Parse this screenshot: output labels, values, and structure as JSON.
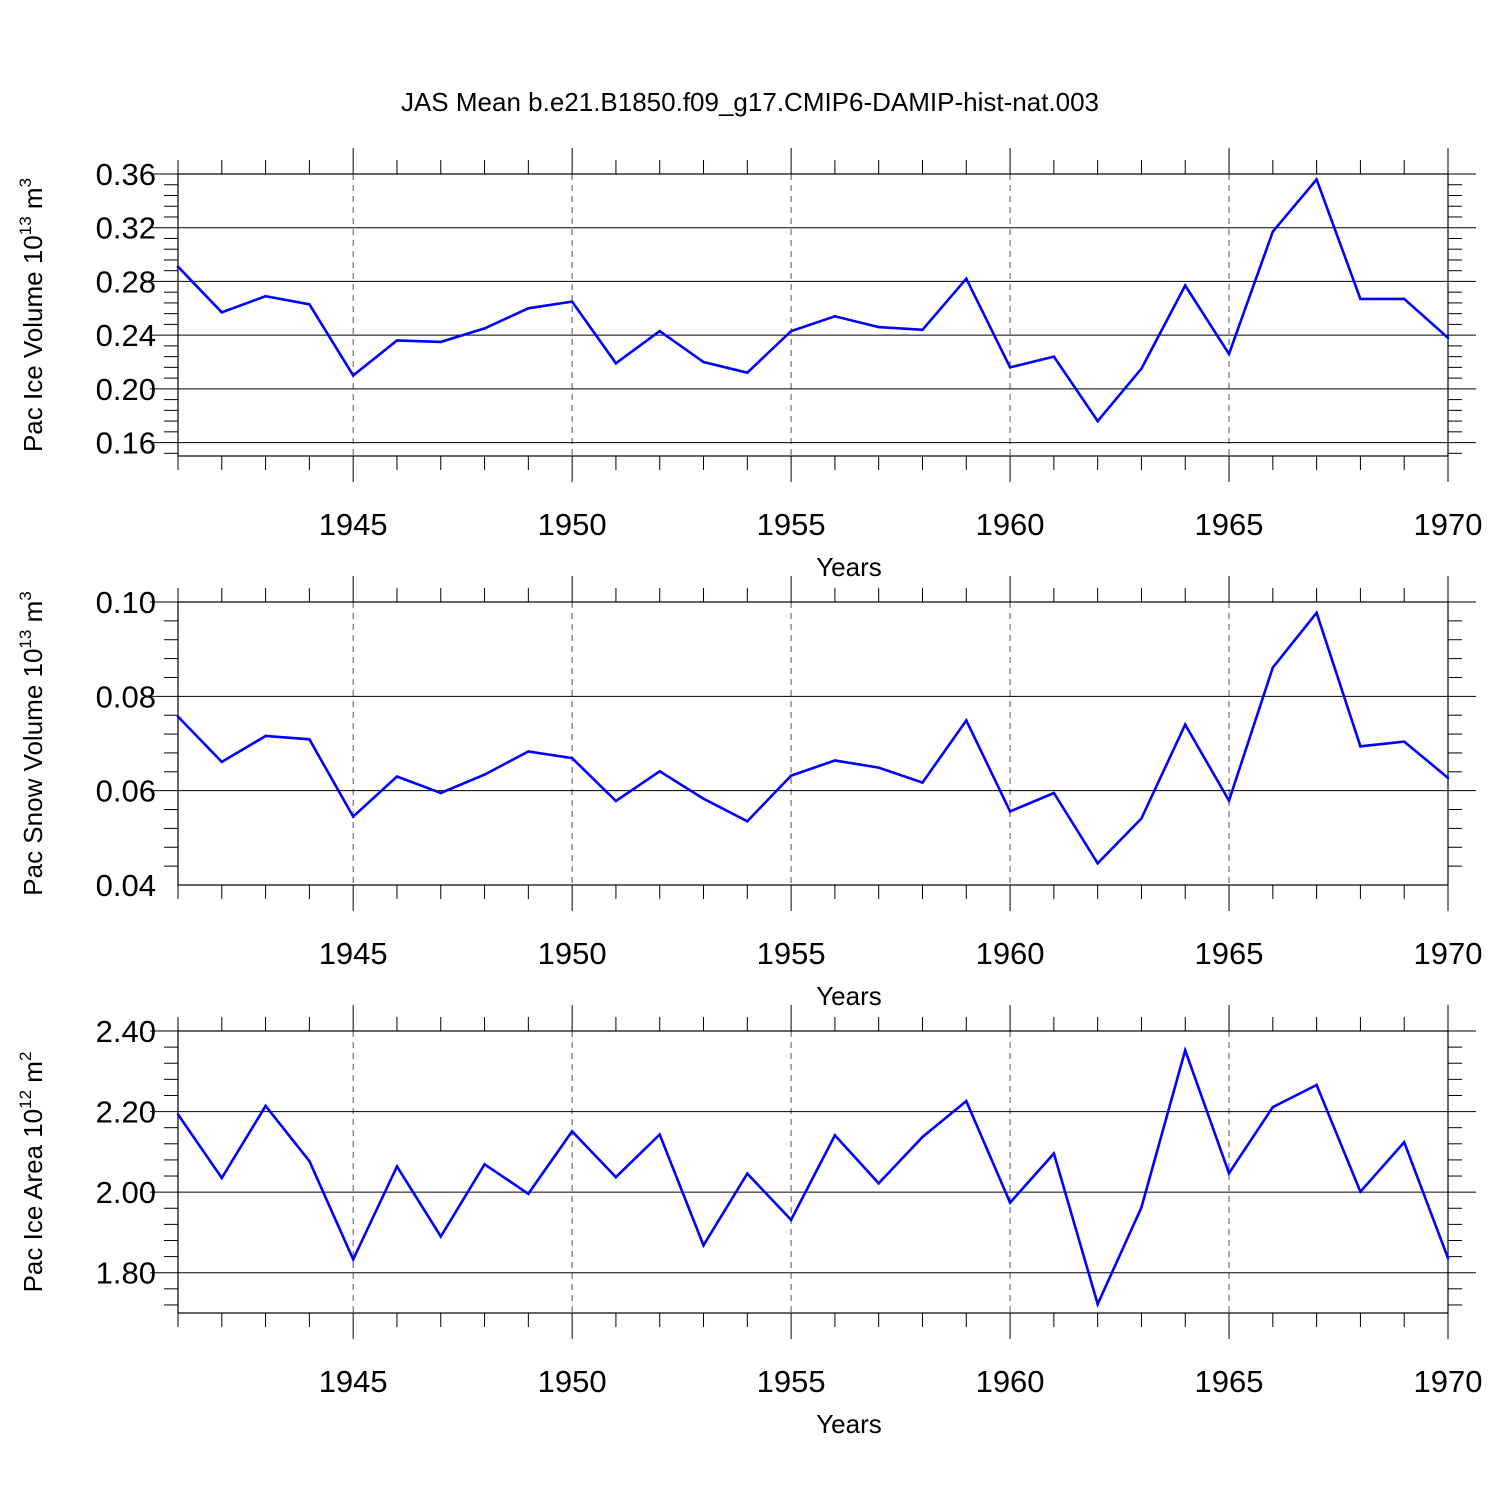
{
  "title": "JAS Mean b.e21.B1850.f09_g17.CMIP6-DAMIP-hist-nat.003",
  "colors": {
    "line": "#0000ff",
    "axis": "#000000",
    "grid": "#555555"
  },
  "chart_data": [
    {
      "type": "line",
      "ylabel_main": "Pac Ice Volume 10",
      "ylabel_exp": "13",
      "ylabel_unit": " m",
      "ylabel_unit_exp": "3",
      "xlabel": "Years",
      "xlim": [
        1941,
        1970
      ],
      "ylim": [
        0.15,
        0.36
      ],
      "yticks": [
        0.16,
        0.2,
        0.24,
        0.28,
        0.32,
        0.36
      ],
      "ytick_labels": [
        "0.16",
        "0.20",
        "0.24",
        "0.28",
        "0.32",
        "0.36"
      ],
      "xticks": [
        1945,
        1950,
        1955,
        1960,
        1965,
        1970
      ],
      "xtick_labels": [
        "1945",
        "1950",
        "1955",
        "1960",
        "1965",
        "1970"
      ],
      "x": [
        1941,
        1942,
        1943,
        1944,
        1945,
        1946,
        1947,
        1948,
        1949,
        1950,
        1951,
        1952,
        1953,
        1954,
        1955,
        1956,
        1957,
        1958,
        1959,
        1960,
        1961,
        1962,
        1963,
        1964,
        1965,
        1966,
        1967,
        1968,
        1969,
        1970
      ],
      "values": [
        0.291,
        0.257,
        0.269,
        0.263,
        0.21,
        0.236,
        0.235,
        0.245,
        0.26,
        0.265,
        0.219,
        0.243,
        0.22,
        0.212,
        0.243,
        0.254,
        0.246,
        0.244,
        0.282,
        0.216,
        0.224,
        0.176,
        0.215,
        0.277,
        0.226,
        0.317,
        0.356,
        0.267,
        0.267,
        0.238
      ]
    },
    {
      "type": "line",
      "ylabel_main": "Pac Snow Volume 10",
      "ylabel_exp": "13",
      "ylabel_unit": " m",
      "ylabel_unit_exp": "3",
      "xlabel": "Years",
      "xlim": [
        1941,
        1970
      ],
      "ylim": [
        0.04,
        0.1
      ],
      "yticks": [
        0.04,
        0.06,
        0.08,
        0.1
      ],
      "ytick_labels": [
        "0.04",
        "0.06",
        "0.08",
        "0.10"
      ],
      "xticks": [
        1945,
        1950,
        1955,
        1960,
        1965,
        1970
      ],
      "xtick_labels": [
        "1945",
        "1950",
        "1955",
        "1960",
        "1965",
        "1970"
      ],
      "x": [
        1941,
        1942,
        1943,
        1944,
        1945,
        1946,
        1947,
        1948,
        1949,
        1950,
        1951,
        1952,
        1953,
        1954,
        1955,
        1956,
        1957,
        1958,
        1959,
        1960,
        1961,
        1962,
        1963,
        1964,
        1965,
        1966,
        1967,
        1968,
        1969,
        1970
      ],
      "values": [
        0.0757,
        0.0661,
        0.0716,
        0.0709,
        0.0545,
        0.063,
        0.0595,
        0.0634,
        0.0683,
        0.0669,
        0.0578,
        0.0641,
        0.0583,
        0.0535,
        0.0632,
        0.0664,
        0.0649,
        0.0617,
        0.0749,
        0.0556,
        0.0595,
        0.0446,
        0.0541,
        0.074,
        0.0579,
        0.0861,
        0.0977,
        0.0694,
        0.0704,
        0.0627
      ]
    },
    {
      "type": "line",
      "ylabel_main": "Pac Ice Area 10",
      "ylabel_exp": "12",
      "ylabel_unit": " m",
      "ylabel_unit_exp": "2",
      "xlabel": "Years",
      "xlim": [
        1941,
        1970
      ],
      "ylim": [
        1.7,
        2.4
      ],
      "yticks": [
        1.8,
        2.0,
        2.2,
        2.4
      ],
      "ytick_labels": [
        "1.80",
        "2.00",
        "2.20",
        "2.40"
      ],
      "xticks": [
        1945,
        1950,
        1955,
        1960,
        1965,
        1970
      ],
      "xtick_labels": [
        "1945",
        "1950",
        "1955",
        "1960",
        "1965",
        "1970"
      ],
      "x": [
        1941,
        1942,
        1943,
        1944,
        1945,
        1946,
        1947,
        1948,
        1949,
        1950,
        1951,
        1952,
        1953,
        1954,
        1955,
        1956,
        1957,
        1958,
        1959,
        1960,
        1961,
        1962,
        1963,
        1964,
        1965,
        1966,
        1967,
        1968,
        1969,
        1970
      ],
      "values": [
        2.193,
        2.035,
        2.214,
        2.077,
        1.833,
        2.064,
        1.89,
        2.069,
        1.996,
        2.151,
        2.037,
        2.143,
        1.868,
        2.046,
        1.931,
        2.141,
        2.022,
        2.137,
        2.226,
        1.974,
        2.096,
        1.722,
        1.962,
        2.352,
        2.047,
        2.211,
        2.266,
        2.001,
        2.124,
        1.836
      ]
    }
  ]
}
